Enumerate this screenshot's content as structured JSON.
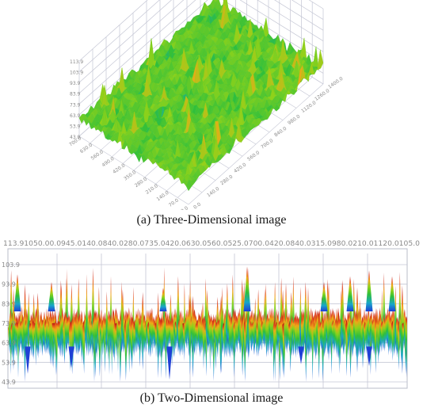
{
  "captions": {
    "a": "(a) Three-Dimensional image",
    "b": "(b) Two-Dimensional image"
  },
  "chart_data": [
    {
      "type": "surface",
      "caption": "(a) Three-Dimensional image",
      "z_ticks": [
        "113.9",
        "103.9",
        "93.9",
        "83.9",
        "73.9",
        "63.9",
        "53.9",
        "43.9"
      ],
      "x_ticks": [
        "0.0",
        "70.0",
        "140.0",
        "210.0",
        "280.0",
        "350.0",
        "420.0",
        "490.0",
        "560.0",
        "630.0",
        "700.0"
      ],
      "y_ticks": [
        "0.0",
        "140.0",
        "280.0",
        "420.0",
        "560.0",
        "700.0",
        "840.0",
        "980.0",
        "1120.0",
        "1260.0",
        "1400.0"
      ],
      "zlim": [
        43.9,
        113.9
      ],
      "colormap": [
        "#1f3fd6",
        "#17a6c9",
        "#2fbf3a",
        "#8fd21a",
        "#f0a818",
        "#e0401a",
        "#b01010"
      ],
      "grid": true
    },
    {
      "type": "area",
      "caption": "(b) Two-Dimensional image",
      "x_tick_text": "113.91050.00.0945.0140.0840.0280.0735.0420.0630.0560.0525.0700.0420.0840.0315.0980.0210.01120.0105.0",
      "y_ticks": [
        "103.9",
        "93.9",
        "83.9",
        "73.9",
        "63.9",
        "53.9",
        "43.9"
      ],
      "ylim": [
        43.9,
        113.9
      ],
      "colormap": [
        "#1f3fd6",
        "#17a6c9",
        "#2fbf3a",
        "#8fd21a",
        "#f0a818",
        "#e0401a",
        "#b01010"
      ],
      "grid": true
    }
  ]
}
